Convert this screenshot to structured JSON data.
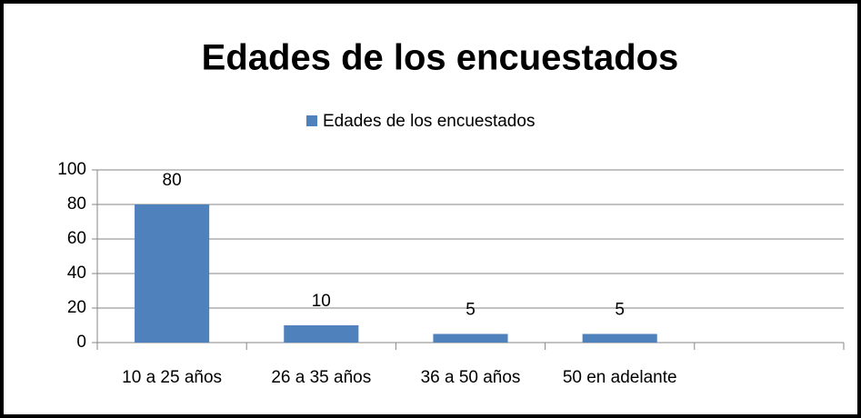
{
  "chart_data": {
    "type": "bar",
    "title": "Edades de los encuestados",
    "categories": [
      "10 a 25 años",
      "26 a 35 años",
      "36 a 50 años",
      "50 en adelante",
      null
    ],
    "series": [
      {
        "name": "Edades de los encuestados",
        "color": "#4f81bd",
        "values": [
          80,
          10,
          5,
          5,
          null
        ]
      }
    ],
    "ylim": [
      0,
      100
    ],
    "yticks": [
      0,
      20,
      40,
      60,
      80,
      100
    ],
    "grid": true,
    "legend": "top"
  }
}
